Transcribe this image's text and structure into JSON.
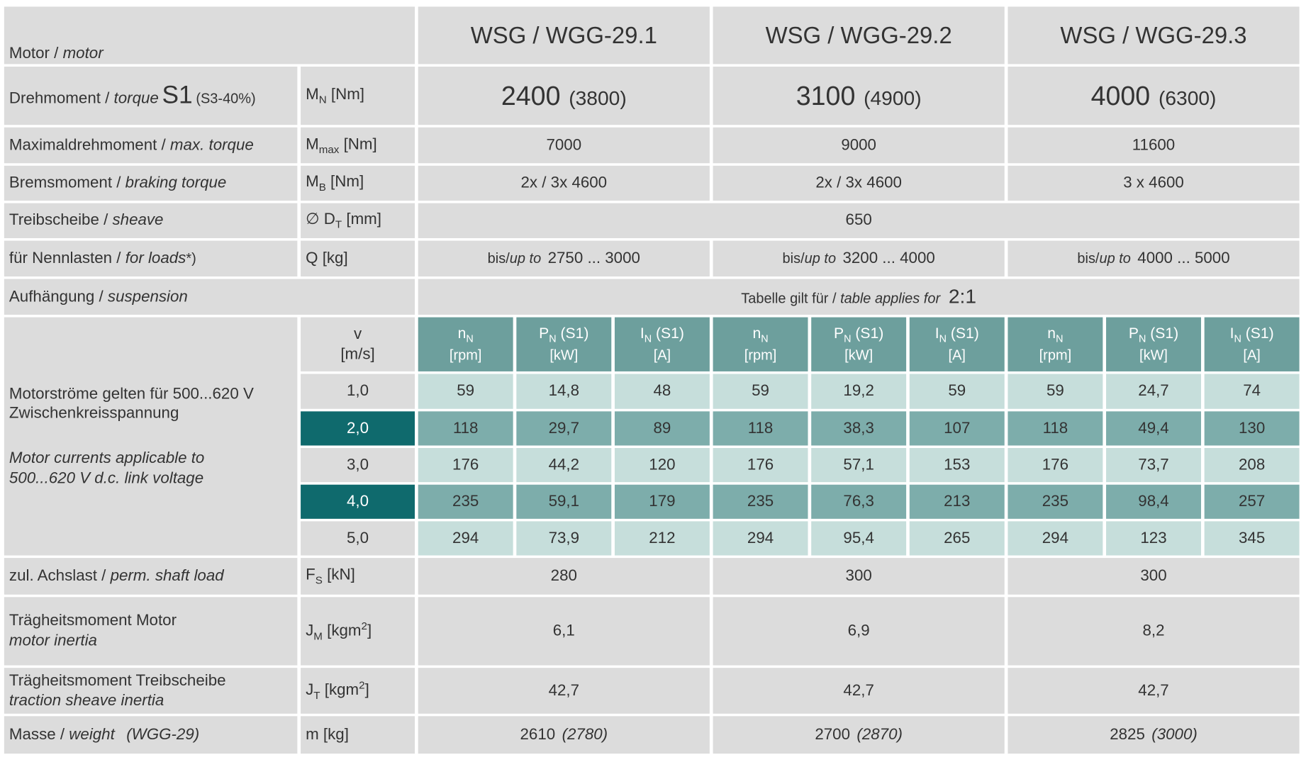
{
  "header": {
    "label_de": "Motor / ",
    "label_en": "motor",
    "models": [
      "WSG / WGG-29.1",
      "WSG / WGG-29.2",
      "WSG / WGG-29.3"
    ]
  },
  "torque": {
    "label_de": "Drehmoment / ",
    "label_en": "torque",
    "s1": "S1",
    "s3": "(S3-40%)",
    "unit": "M",
    "unit_sub": "N",
    "unit_rest": " [Nm]",
    "values": [
      2400,
      3100,
      4000
    ],
    "peak": [
      "(3800)",
      "(4900)",
      "(6300)"
    ]
  },
  "max_torque": {
    "label_de": "Maximaldrehmoment / ",
    "label_en": "max. torque",
    "unit": "M",
    "unit_sub": "max",
    "unit_rest": " [Nm]",
    "values": [
      7000,
      9000,
      11600
    ]
  },
  "braking": {
    "label_de": "Bremsmoment / ",
    "label_en": "braking torque",
    "unit": "M",
    "unit_sub": "B",
    "unit_rest": " [Nm]",
    "values": [
      "2x / 3x 4600",
      "2x / 3x 4600",
      "3 x 4600"
    ]
  },
  "sheave": {
    "label_de": "Treibscheibe / ",
    "label_en": "sheave",
    "unit": "∅ D",
    "unit_sub": "T",
    "unit_rest": " [mm]",
    "value": 650
  },
  "loads": {
    "label_de": "für Nennlasten / ",
    "label_en": "for loads",
    "note": "*)",
    "unit": "Q [kg]",
    "prefix": "bis/",
    "prefix_en": "up to",
    "values": [
      "2750 ... 3000",
      "3200 ... 4000",
      "4000 ... 5000"
    ]
  },
  "suspension": {
    "label_de": "Aufhängung / ",
    "label_en": "suspension",
    "text_de": "Tabelle gilt für / ",
    "text_en": "table applies for",
    "ratio": "2:1"
  },
  "currents": {
    "note_de": [
      "Motorströme gelten für 500...620 V",
      "Zwischenkreisspannung"
    ],
    "note_en": [
      "Motor currents applicable to",
      "500...620 V d.c. link voltage"
    ],
    "v_label": "v",
    "v_unit": "[m/s]",
    "columns": [
      {
        "sym": "n",
        "sub": "N",
        "tail": "",
        "unit": "[rpm]"
      },
      {
        "sym": "P",
        "sub": "N",
        "tail": " (S1)",
        "unit": "[kW]"
      },
      {
        "sym": "I",
        "sub": "N",
        "tail": " (S1)",
        "unit": "[A]"
      }
    ],
    "speeds": [
      "1,0",
      "2,0",
      "3,0",
      "4,0",
      "5,0"
    ],
    "rows": [
      [
        59,
        "14,8",
        48,
        59,
        "19,2",
        59,
        59,
        "24,7",
        74
      ],
      [
        118,
        "29,7",
        89,
        118,
        "38,3",
        107,
        118,
        "49,4",
        130
      ],
      [
        176,
        "44,2",
        120,
        176,
        "57,1",
        153,
        176,
        "73,7",
        208
      ],
      [
        235,
        "59,1",
        179,
        235,
        "76,3",
        213,
        235,
        "98,4",
        257
      ],
      [
        294,
        "73,9",
        212,
        294,
        "95,4",
        265,
        294,
        123,
        345
      ]
    ]
  },
  "shaft_load": {
    "label_de": "zul. Achslast / ",
    "label_en": "perm. shaft load",
    "unit": "F",
    "unit_sub": "S",
    "unit_rest": " [kN]",
    "values": [
      280,
      300,
      300
    ]
  },
  "motor_inertia": {
    "label_de": "Trägheitsmoment Motor",
    "label_en": "motor inertia",
    "unit": "J",
    "unit_sub": "M",
    "unit_rest": " [kgm",
    "unit_sup": "2",
    "unit_close": "]",
    "values": [
      "6,1",
      "6,9",
      "8,2"
    ]
  },
  "sheave_inertia": {
    "label_de": "Trägheitsmoment Treibscheibe",
    "label_en": "traction sheave inertia",
    "unit": "J",
    "unit_sub": "T",
    "unit_rest": " [kgm",
    "unit_sup": "2",
    "unit_close": "]",
    "values": [
      "42,7",
      "42,7",
      "42,7"
    ]
  },
  "weight": {
    "label_de": "Masse / ",
    "label_en": "weight",
    "label_model": "(WGG-29)",
    "unit": "m [kg]",
    "values": [
      2610,
      2700,
      2825
    ],
    "alt": [
      "(2780)",
      "(2870)",
      "(3000)"
    ]
  }
}
